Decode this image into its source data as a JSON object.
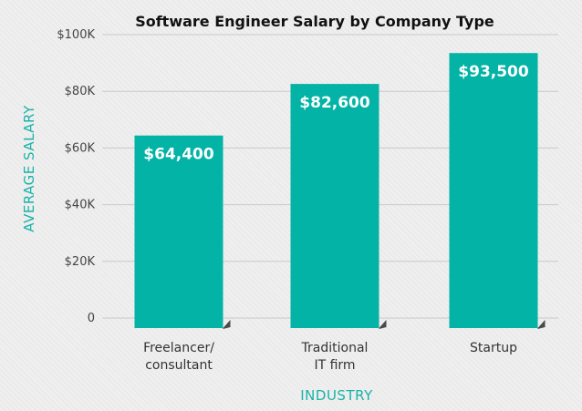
{
  "chart_data": {
    "type": "bar",
    "title": "Software Engineer Salary by Company Type",
    "xlabel": "INDUSTRY",
    "ylabel": "AVERAGE SALARY",
    "categories": [
      [
        "Freelancer/",
        "consultant"
      ],
      [
        "Traditional",
        "IT firm"
      ],
      [
        "Startup"
      ]
    ],
    "values": [
      64400,
      82600,
      93500
    ],
    "value_labels": [
      "$64,400",
      "$82,600",
      "$93,500"
    ],
    "ylim": [
      0,
      100000
    ],
    "yticks": [
      0,
      20000,
      40000,
      60000,
      80000,
      100000
    ],
    "ytick_labels": [
      "0",
      "$20K",
      "$40K",
      "$60K",
      "$80K",
      "$100K"
    ],
    "grid": true,
    "colors": {
      "bar": "#02b3a6",
      "bar_shadow": "#4a4a4a",
      "axis_label": "#19b3a7",
      "grid": "#c9c9c9"
    }
  }
}
